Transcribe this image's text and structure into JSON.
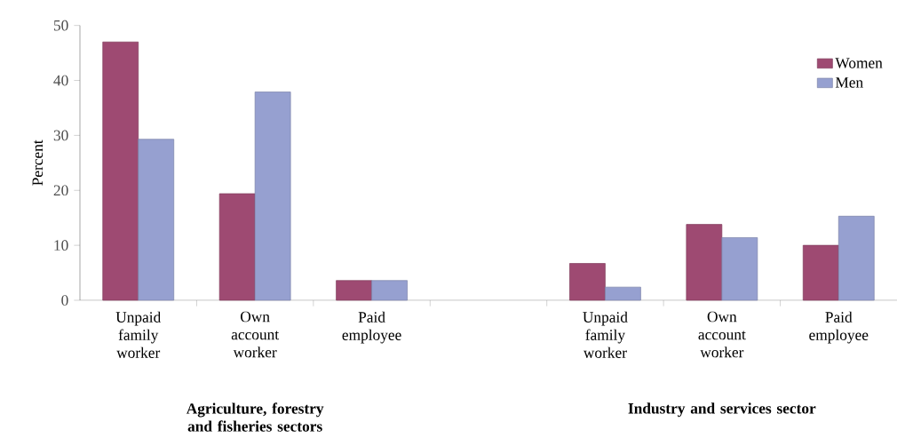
{
  "chart_data": {
    "type": "bar",
    "ylabel": "Percent",
    "categories": [
      "Unpaid family worker",
      "Own account worker",
      "Paid employee",
      null,
      "Unpaid family worker",
      "Own account worker",
      "Paid employee"
    ],
    "series": [
      {
        "name": "Women",
        "color": "#9e4a72",
        "values": [
          47,
          19.4,
          3.6,
          null,
          6.7,
          13.8,
          10.0
        ]
      },
      {
        "name": "Men",
        "color": "#96a0d0",
        "values": [
          29.3,
          37.9,
          3.6,
          null,
          2.4,
          11.4,
          15.3
        ]
      }
    ],
    "ylim": [
      0,
      50
    ],
    "yticks": [
      0,
      10,
      20,
      30,
      40,
      50
    ],
    "legend": "top right",
    "annotations": [
      "Agriculture, forestry and fisheries sectors",
      "Industry and services sector"
    ]
  }
}
